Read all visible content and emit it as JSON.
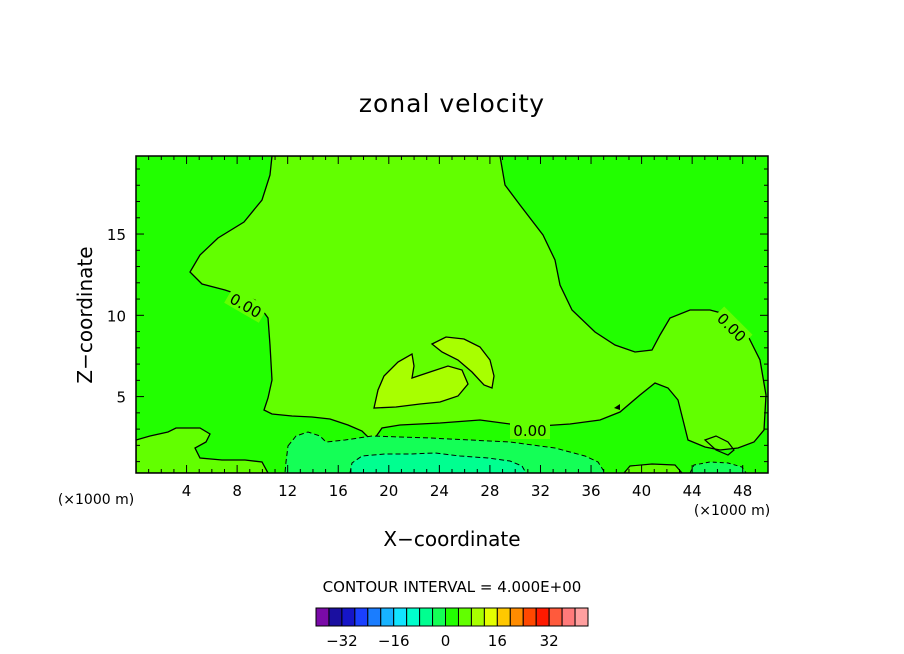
{
  "chart_data": {
    "type": "heatmap",
    "title": "zonal velocity",
    "xlabel": "X−coordinate",
    "ylabel": "Z−coordinate",
    "x_unit": "(×1000 m)",
    "z_unit": "(×1000 m)",
    "xlim": [
      0,
      50
    ],
    "ylim": [
      0.3,
      19.8
    ],
    "x_ticks": [
      4,
      8,
      12,
      16,
      20,
      24,
      28,
      32,
      36,
      40,
      44,
      48
    ],
    "y_ticks": [
      5,
      10,
      15
    ],
    "contour_interval_label": "CONTOUR INTERVAL = 4.000E+00",
    "contour_labels": [
      {
        "text": "0.00",
        "x": 8.5,
        "z": 10.1
      },
      {
        "text": "0.00",
        "x": 31,
        "z": 2.7
      },
      {
        "text": "0.00",
        "x": 47.5,
        "z": 9.7
      }
    ],
    "colorbar": {
      "tick_labels": [
        "−32",
        "−16",
        "0",
        "16",
        "32"
      ],
      "tick_values": [
        -32,
        -16,
        0,
        16,
        32
      ],
      "colors": [
        "#7a0aa8",
        "#1a0fa0",
        "#1515c8",
        "#1a40ff",
        "#1a7dff",
        "#17b3ff",
        "#12e4ff",
        "#00ffcc",
        "#00ff90",
        "#14ff56",
        "#22ff00",
        "#62ff00",
        "#a8ff00",
        "#e4ff00",
        "#ffc800",
        "#ff8c00",
        "#ff4800",
        "#ff1a00",
        "#ff5a3c",
        "#ff7a7a",
        "#ff9f9f"
      ]
    },
    "regions": [
      {
        "level": "0 to 4",
        "color": "#22ff00",
        "description": "background"
      },
      {
        "level": "4 to 8",
        "color": "#62ff00",
        "description": "central upper region and lower-left"
      },
      {
        "level": "8 to 12",
        "color": "#a8ff00",
        "description": "two small cores near x=22-27, z=4-8"
      },
      {
        "level": "-4 to 0",
        "color": "#14ff56",
        "description": "near-surface band x=12-38"
      },
      {
        "level": "-8 to -4",
        "color": "#00ff90",
        "description": "surface core x=18-32"
      }
    ]
  }
}
